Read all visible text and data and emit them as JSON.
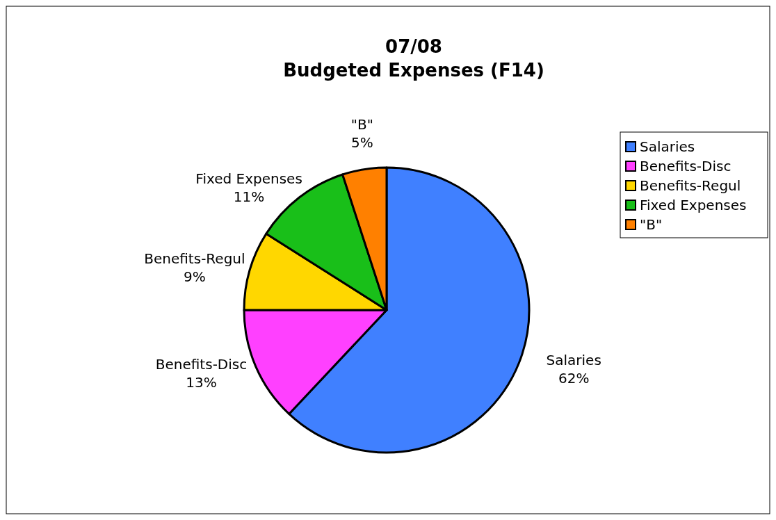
{
  "chart_data": {
    "type": "pie",
    "title": "07/08\nBudgeted Expenses (F14)",
    "categories": [
      "Salaries",
      "Benefits-Disc",
      "Benefits-Regul",
      "Fixed Expenses",
      "\"B\""
    ],
    "values": [
      62,
      13,
      9,
      11,
      5
    ],
    "colors": [
      "#4080ff",
      "#ff40ff",
      "#ffd700",
      "#19bf19",
      "#ff8000"
    ],
    "value_labels": [
      "62%",
      "13%",
      "9%",
      "11%",
      "5%"
    ],
    "legend": "right"
  }
}
